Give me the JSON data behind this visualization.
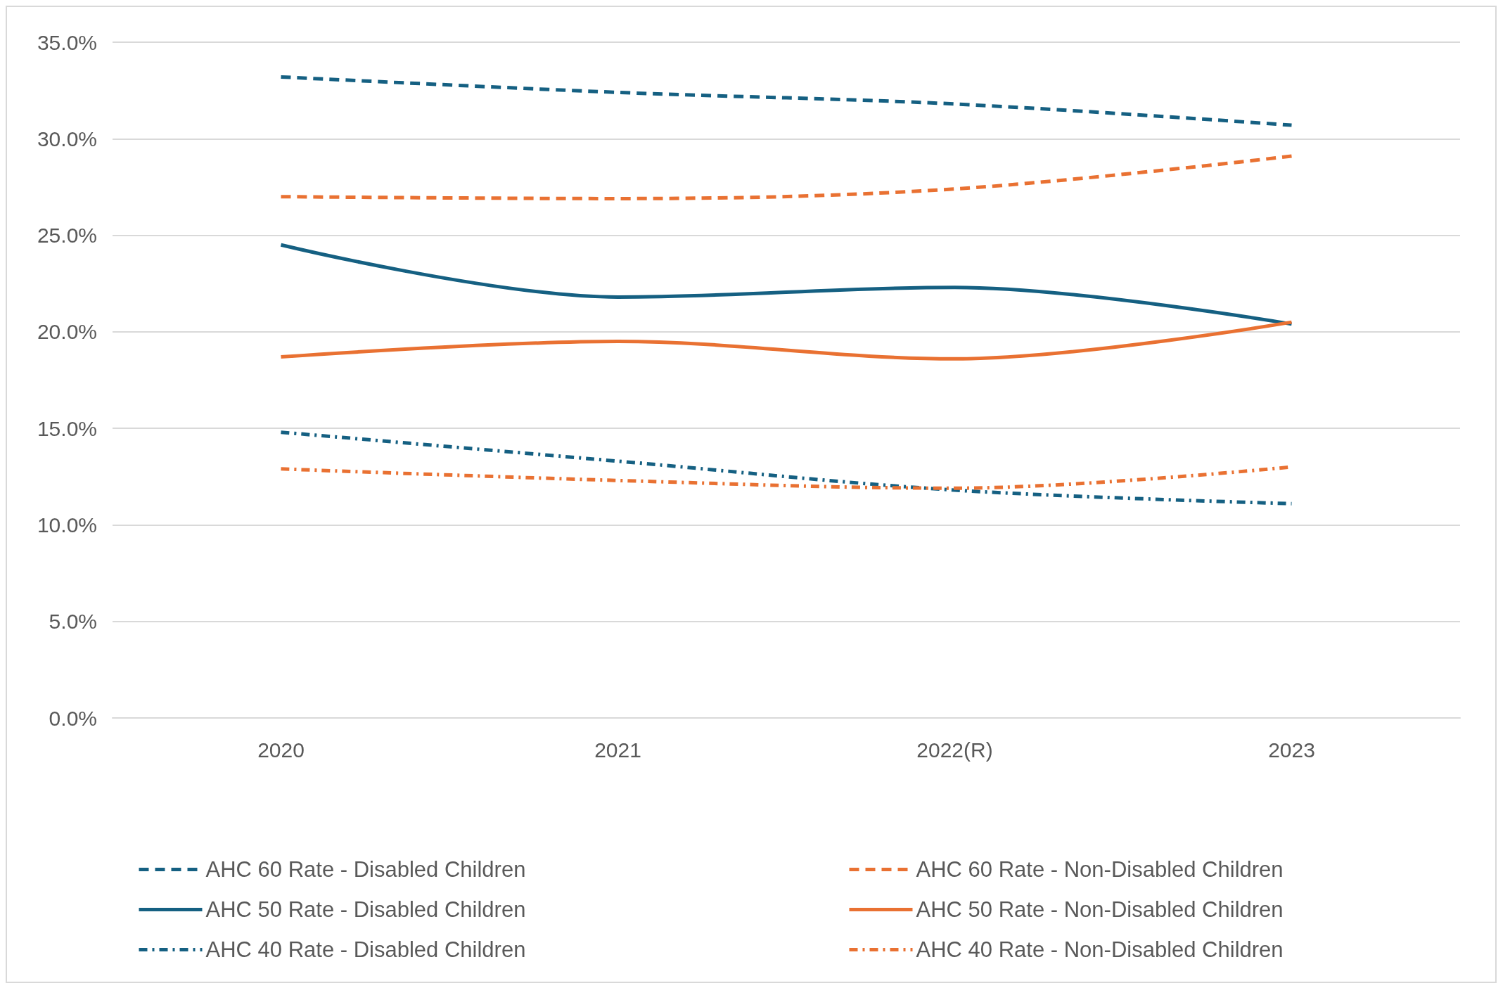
{
  "chart_data": {
    "type": "line",
    "categories": [
      "2020",
      "2021",
      "2022(R)",
      "2023"
    ],
    "series": [
      {
        "name": "AHC 60 Rate - Disabled Children",
        "color": "#156082",
        "line_style": "dashed",
        "values": [
          33.2,
          32.4,
          31.8,
          30.7
        ]
      },
      {
        "name": "AHC 60 Rate - Non-Disabled Children",
        "color": "#e97132",
        "line_style": "dashed",
        "values": [
          27.0,
          26.9,
          27.4,
          29.1
        ]
      },
      {
        "name": "AHC 50 Rate - Disabled Children",
        "color": "#156082",
        "line_style": "solid",
        "values": [
          24.5,
          21.8,
          22.3,
          20.4
        ]
      },
      {
        "name": "AHC 50 Rate - Non-Disabled Children",
        "color": "#e97132",
        "line_style": "solid",
        "values": [
          18.7,
          19.5,
          18.6,
          20.5
        ]
      },
      {
        "name": "AHC 40 Rate - Disabled Children",
        "color": "#156082",
        "line_style": "dotted",
        "values": [
          14.8,
          13.3,
          11.8,
          11.1
        ]
      },
      {
        "name": "AHC 40 Rate - Non-Disabled Children",
        "color": "#e97132",
        "line_style": "dotted",
        "values": [
          12.9,
          12.3,
          11.9,
          13.0
        ]
      }
    ],
    "ylim": [
      0,
      35
    ],
    "yticks": [
      {
        "value": 0,
        "label": "0.0%"
      },
      {
        "value": 5,
        "label": "5.0%"
      },
      {
        "value": 10,
        "label": "10.0%"
      },
      {
        "value": 15,
        "label": "15.0%"
      },
      {
        "value": 20,
        "label": "20.0%"
      },
      {
        "value": 25,
        "label": "25.0%"
      },
      {
        "value": 30,
        "label": "30.0%"
      },
      {
        "value": 35,
        "label": "35.0%"
      }
    ],
    "grid": "y",
    "legend": "bottom",
    "marker": "none"
  }
}
